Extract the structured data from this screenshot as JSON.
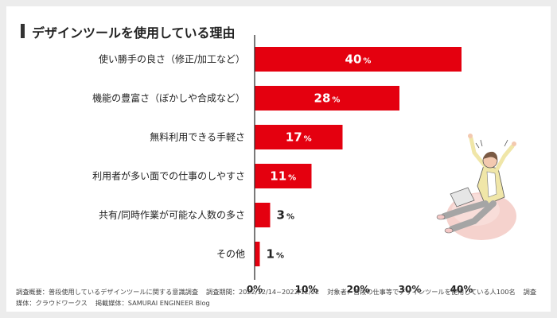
{
  "title": "デザインツールを使用している理由",
  "colors": {
    "bar": "#e4000f",
    "axis": "#333333",
    "text": "#222222"
  },
  "chart_data": {
    "type": "bar",
    "orientation": "horizontal",
    "title": "デザインツールを使用している理由",
    "categories": [
      "使い勝手の良さ（修正/加工など）",
      "機能の豊富さ（ぼかしや合成など）",
      "無料利用できる手軽さ",
      "利用者が多い面での仕事のしやすさ",
      "共有/同時作業が可能な人数の多さ",
      "その他"
    ],
    "values": [
      40,
      28,
      17,
      11,
      3,
      1
    ],
    "value_unit": "%",
    "xlim": [
      0,
      40
    ],
    "xticks": [
      0,
      10,
      20,
      30,
      40
    ],
    "tick_suffix": "%"
  },
  "footnote": {
    "survey": "調査概要：普段使用しているデザインツールに関する意識調査",
    "period": "調査期間：2022/12/14~2022/12/22",
    "target": "対象者：普段の仕事等でデザインツールを使用している人100名",
    "method": "調査媒体：クラウドワークス",
    "media": "掲載媒体：SAMURAI ENGINEER Blog"
  }
}
